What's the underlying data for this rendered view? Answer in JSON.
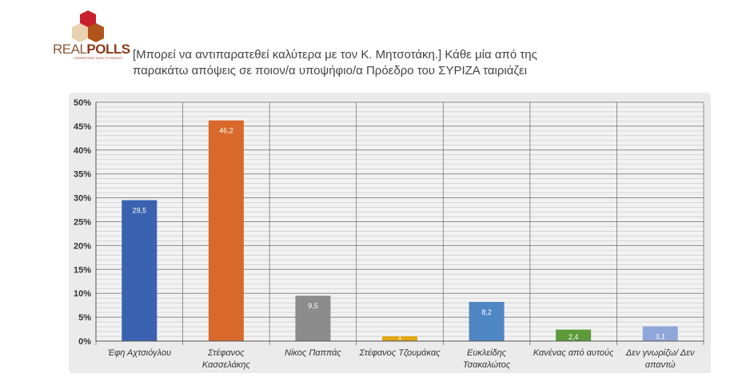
{
  "logo": {
    "text_light": "REAL",
    "text_bold": "POLLS",
    "tagline": "CONVERTING DATA TO INSIGHT"
  },
  "title_lines": [
    "[Μπορεί να αντιπαρατεθεί καλύτερα με τον Κ. Μητσοτάκη.] Κάθε μία από της",
    "παρακάτω απόψεις σε ποιον/α υποψήφιο/α Πρόεδρο του ΣΥΡΙΖΑ ταιριάζει"
  ],
  "chart_data": {
    "type": "bar",
    "title": "[Μπορεί να αντιπαρατεθεί καλύτερα με τον Κ. Μητσοτάκη.] Κάθε μία από της παρακάτω απόψεις σε ποιον/α υποψήφιο/α Πρόεδρο του ΣΥΡΙΖΑ ταιριάζει",
    "categories": [
      [
        "Έφη Αχτσιόγλου"
      ],
      [
        "Στέφανος",
        "Κασσελάκης"
      ],
      [
        "Νίκος Παππάς"
      ],
      [
        "Στέφανος Τζουμάκας"
      ],
      [
        "Ευκλείδης",
        "Τσακαλώτος"
      ],
      [
        "Κανένας από αυτούς"
      ],
      [
        "Δεν γνωρίζω/  Δεν",
        "απαντώ"
      ]
    ],
    "values": [
      29.5,
      46.2,
      9.5,
      1,
      8.2,
      2.4,
      3.1
    ],
    "data_labels": [
      "29,5",
      "46,2",
      "9,5",
      "1",
      "8,2",
      "2,4",
      "3,1"
    ],
    "colors": [
      "#3a62b0",
      "#d9692a",
      "#8c8c8c",
      "#e0a814",
      "#4f86c4",
      "#5d9a3a",
      "#8fa6d8"
    ],
    "ylim": [
      0,
      50
    ],
    "yticks": [
      "0%",
      "5%",
      "10%",
      "15%",
      "20%",
      "25%",
      "30%",
      "35%",
      "40%",
      "45%",
      "50%"
    ],
    "grid": true
  }
}
